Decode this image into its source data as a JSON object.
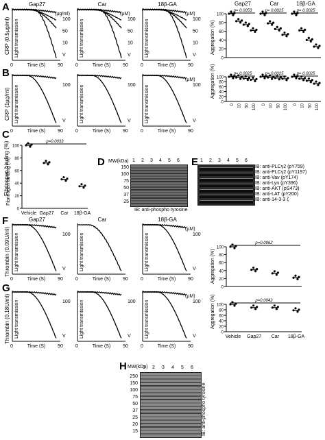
{
  "panels": {
    "A": {
      "label": "A",
      "ylabel": "CRP (0.5µg/ml)",
      "trace_ylabel": "Light transmission",
      "xlabel": "Time (S)",
      "x_start": "0",
      "x_end": "90",
      "columns": [
        {
          "title": "Gap27",
          "unit": "(µg/ml)",
          "doses": [
            "100",
            "50",
            "10",
            "V"
          ]
        },
        {
          "title": "Car",
          "unit": "(µM)",
          "doses": [
            "100",
            "50",
            "10",
            "V"
          ]
        },
        {
          "title": "18β-GA",
          "unit": "(µM)",
          "doses": [
            "100",
            "50",
            "10",
            "V"
          ]
        }
      ],
      "agg_ylabel": "Aggregation (%)",
      "group_titles": [
        "Gap27",
        "Car",
        "18β-GA"
      ],
      "pvalues": [
        "p= 0.0053",
        "p= 0.0025",
        "p= 0.0025"
      ]
    },
    "B": {
      "label": "B",
      "ylabel": "CRP (1µg/ml)",
      "trace_ylabel": "Light transmission",
      "xlabel": "Time (S)",
      "x_start": "0",
      "x_end": "90",
      "columns": [
        {
          "unit": "",
          "doses": [
            "100",
            "V"
          ]
        },
        {
          "unit": "",
          "doses": [
            "100",
            "V"
          ]
        },
        {
          "unit": "(µM)",
          "doses": [
            "100",
            "V"
          ]
        }
      ],
      "agg_ylabel": "Aggregation (%)",
      "pvalues": [
        "p= 0.0025",
        "p= 0.0025",
        "p= 0.0025"
      ],
      "dose_ticks": [
        "0",
        "10",
        "50",
        "100"
      ]
    },
    "C": {
      "label": "C",
      "ylabel": "Fibrinogen binding (%)",
      "pvalue": "p=0.0033",
      "categories": [
        "Vehicle",
        "Gap27",
        "Car",
        "18β-GA"
      ]
    },
    "D": {
      "label": "D",
      "mw_label": "MW(kDa)",
      "lanes": [
        "1",
        "2",
        "3",
        "4",
        "5",
        "6"
      ],
      "markers": [
        "150",
        "100",
        "75",
        "50",
        "37",
        "25"
      ],
      "caption": "IB: anti-phospho tyrosine"
    },
    "E": {
      "label": "E",
      "lanes": [
        "1",
        "2",
        "3",
        "4",
        "5",
        "6"
      ],
      "bands": [
        "IB: anti-PLCγ2 (pY759)",
        "IB: anti-PLCγ2 (pY1197)",
        "IB: anti-Vav (pY174)",
        "IB: anti-Lyn (pY396)",
        "IB: anti-AKT (pS473)",
        "IB: anti-LAT (pY200)",
        "IB: anti-14-3-3 ζ"
      ]
    },
    "F": {
      "label": "F",
      "ylabel": "Thrombin (0.09U/ml)",
      "trace_ylabel": "Light transmission",
      "xlabel": "Time (S)",
      "x_start": "0",
      "x_end": "90",
      "columns": [
        {
          "title": "Gap27",
          "unit": "",
          "doses": [
            "100",
            "V"
          ]
        },
        {
          "title": "Car",
          "unit": "",
          "doses": []
        },
        {
          "title": "18β-GA",
          "unit": "(µM)",
          "doses": [
            "100",
            "V"
          ]
        }
      ],
      "agg_ylabel": "Aggregation (%)",
      "pvalue": "p=0.0062"
    },
    "G": {
      "label": "G",
      "ylabel": "Thrombin (0.18U/ml)",
      "trace_ylabel": "Light transmission",
      "xlabel": "Time (S)",
      "x_start": "0",
      "x_end": "90",
      "columns": [
        {
          "unit": "",
          "doses": [
            "100",
            "V"
          ]
        },
        {
          "unit": "",
          "doses": [
            "100",
            "V"
          ]
        },
        {
          "unit": "(µM)",
          "doses": [
            "100",
            "V"
          ]
        }
      ],
      "agg_ylabel": "Aggregation (%)",
      "pvalue": "p=0.0042",
      "categories": [
        "Vehicle",
        "Gap27",
        "Car",
        "18β-GA"
      ]
    },
    "H": {
      "label": "H",
      "mw_label": "MW(kDa)",
      "lanes": [
        "1",
        "2",
        "3",
        "4",
        "5",
        "6"
      ],
      "markers": [
        "250",
        "150",
        "100",
        "75",
        "50",
        "37",
        "25",
        "20",
        "15"
      ],
      "caption": "IB: anti-phospho tyrosine"
    }
  },
  "chart_data": [
    {
      "type": "scatter",
      "panel": "A",
      "ylabel": "Aggregation (%)",
      "ylim": [
        0,
        100
      ],
      "yticks": [
        "0",
        "20",
        "40",
        "60",
        "80",
        "100"
      ],
      "categories": [
        "Gap27 0",
        "Gap27 10",
        "Gap27 50",
        "Gap27 100",
        "Car 0",
        "Car 10",
        "Car 50",
        "Car 100",
        "18β-GA 0",
        "18β-GA 10",
        "18β-GA 50",
        "18β-GA 100"
      ],
      "values": [
        100,
        83,
        75,
        62,
        100,
        78,
        65,
        52,
        100,
        62,
        40,
        25
      ]
    },
    {
      "type": "scatter",
      "panel": "B",
      "ylabel": "Aggregation (%)",
      "ylim": [
        0,
        100
      ],
      "yticks": [
        "0",
        "20",
        "40",
        "60",
        "80",
        "100"
      ],
      "categories": [
        "Gap27 0",
        "Gap27 10",
        "Gap27 50",
        "Gap27 100",
        "Car 0",
        "Car 10",
        "Car 50",
        "Car 100",
        "18β-GA 0",
        "18β-GA 10",
        "18β-GA 50",
        "18β-GA 100"
      ],
      "values": [
        100,
        97,
        93,
        88,
        100,
        97,
        95,
        92,
        100,
        92,
        84,
        72
      ]
    },
    {
      "type": "scatter",
      "panel": "C",
      "ylabel": "Fibrinogen binding (%)",
      "ylim": [
        0,
        100
      ],
      "yticks": [
        "0",
        "20",
        "40",
        "60",
        "80",
        "100"
      ],
      "categories": [
        "Vehicle",
        "Gap27",
        "Car",
        "18β-GA"
      ],
      "values": [
        100,
        72,
        46,
        35
      ]
    },
    {
      "type": "scatter",
      "panel": "F",
      "ylabel": "Aggregation (%)",
      "ylim": [
        0,
        100
      ],
      "yticks": [
        "0",
        "20",
        "40",
        "60",
        "80",
        "100"
      ],
      "categories": [
        "Vehicle",
        "Gap27",
        "Car",
        "18β-GA"
      ],
      "values": [
        100,
        42,
        33,
        22
      ]
    },
    {
      "type": "scatter",
      "panel": "G",
      "ylabel": "Aggregation (%)",
      "ylim": [
        0,
        100
      ],
      "yticks": [
        "0",
        "20",
        "40",
        "60",
        "80",
        "100"
      ],
      "categories": [
        "Vehicle",
        "Gap27",
        "Car",
        "18β-GA"
      ],
      "values": [
        100,
        88,
        88,
        78
      ]
    }
  ]
}
